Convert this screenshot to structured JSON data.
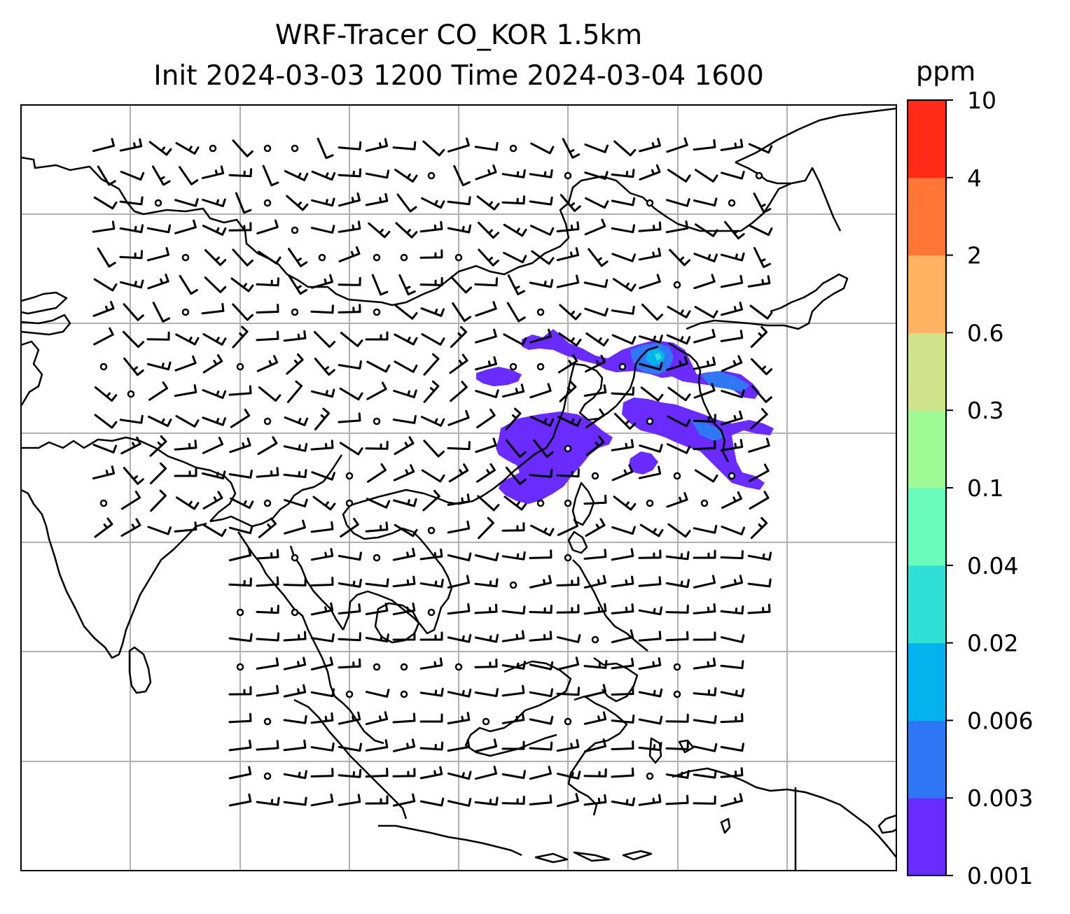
{
  "title": {
    "line1": "WRF-Tracer CO_KOR 1.5km",
    "line2": "Init 2024-03-03 1200 Time 2024-03-04 1600"
  },
  "colorbar": {
    "units": "ppm",
    "ticks": [
      "0.001",
      "0.003",
      "0.006",
      "0.02",
      "0.04",
      "0.1",
      "0.3",
      "0.6",
      "2",
      "4",
      "10"
    ],
    "colors": [
      "#6a2bff",
      "#3077f5",
      "#04b2ee",
      "#30dfd6",
      "#6bfcbc",
      "#9ffa96",
      "#d0e28a",
      "#ffb262",
      "#ff7637",
      "#ff2a18"
    ]
  },
  "map": {
    "gridlines": true,
    "coastlines": true,
    "wind_barbs": true,
    "colors": {
      "gridline": "#b0b0b0",
      "coast": "#000000",
      "plume_main": "#6a2bff",
      "plume_mid": "#3077f5",
      "plume_high": "#04b2ee"
    }
  }
}
